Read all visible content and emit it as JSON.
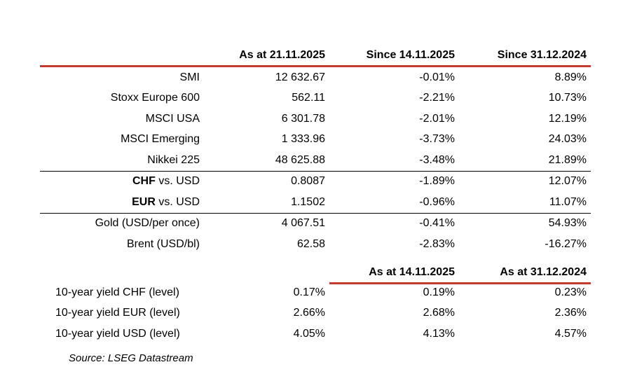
{
  "colors": {
    "accent_red": "#C23B2E",
    "separator_black": "#000000",
    "text": "#000000",
    "background": "#FFFFFF"
  },
  "table1": {
    "headers": [
      "",
      "As at 21.11.2025",
      "Since 14.11.2025",
      "Since 31.12.2024"
    ],
    "rows": [
      {
        "label_bold": "",
        "label": "SMI",
        "v1": "12 632.67",
        "v2": "-0.01%",
        "v3": "8.89%"
      },
      {
        "label_bold": "",
        "label": "Stoxx Europe 600",
        "v1": "562.11",
        "v2": "-2.21%",
        "v3": "10.73%"
      },
      {
        "label_bold": "",
        "label": "MSCI USA",
        "v1": "6 301.78",
        "v2": "-2.01%",
        "v3": "12.19%"
      },
      {
        "label_bold": "",
        "label": "MSCI Emerging",
        "v1": "1 333.96",
        "v2": "-3.73%",
        "v3": "24.03%"
      },
      {
        "label_bold": "",
        "label": "Nikkei 225",
        "v1": "48 625.88",
        "v2": "-3.48%",
        "v3": "21.89%"
      },
      {
        "label_bold": "CHF",
        "label": " vs. USD",
        "v1": "0.8087",
        "v2": "-1.89%",
        "v3": "12.07%"
      },
      {
        "label_bold": "EUR",
        "label": " vs. USD",
        "v1": "1.1502",
        "v2": "-0.96%",
        "v3": "11.07%"
      },
      {
        "label_bold": "",
        "label": "Gold (USD/per once)",
        "v1": "4 067.51",
        "v2": "-0.41%",
        "v3": "54.93%"
      },
      {
        "label_bold": "",
        "label": "Brent (USD/bl)",
        "v1": "62.58",
        "v2": "-2.83%",
        "v3": "-16.27%"
      }
    ]
  },
  "table2": {
    "headers": [
      "",
      "",
      "As at 14.11.2025",
      "As at 31.12.2024"
    ],
    "rows": [
      {
        "label": "10-year yield CHF (level)",
        "v1": "0.17%",
        "v2": "0.19%",
        "v3": "0.23%"
      },
      {
        "label": "10-year yield EUR (level)",
        "v1": "2.66%",
        "v2": "2.68%",
        "v3": "2.36%"
      },
      {
        "label": "10-year yield USD (level)",
        "v1": "4.05%",
        "v2": "4.13%",
        "v3": "4.57%"
      }
    ]
  },
  "source": "Source: LSEG Datastream",
  "chart_data": [
    {
      "type": "table",
      "title": "Market levels and performance",
      "columns": [
        "",
        "As at 21.11.2025",
        "Since 14.11.2025",
        "Since 31.12.2024"
      ],
      "rows": [
        [
          "SMI",
          "12 632.67",
          "-0.01%",
          "8.89%"
        ],
        [
          "Stoxx Europe 600",
          "562.11",
          "-2.21%",
          "10.73%"
        ],
        [
          "MSCI USA",
          "6 301.78",
          "-2.01%",
          "12.19%"
        ],
        [
          "MSCI Emerging",
          "1 333.96",
          "-3.73%",
          "24.03%"
        ],
        [
          "Nikkei 225",
          "48 625.88",
          "-3.48%",
          "21.89%"
        ],
        [
          "CHF vs. USD",
          "0.8087",
          "-1.89%",
          "12.07%"
        ],
        [
          "EUR vs. USD",
          "1.1502",
          "-0.96%",
          "11.07%"
        ],
        [
          "Gold (USD/per once)",
          "4 067.51",
          "-0.41%",
          "54.93%"
        ],
        [
          "Brent (USD/bl)",
          "62.58",
          "-2.83%",
          "-16.27%"
        ]
      ]
    },
    {
      "type": "table",
      "title": "10-year yields",
      "columns": [
        "",
        "As at 21.11.2025",
        "As at 14.11.2025",
        "As at 31.12.2024"
      ],
      "rows": [
        [
          "10-year yield CHF (level)",
          "0.17%",
          "0.19%",
          "0.23%"
        ],
        [
          "10-year yield EUR (level)",
          "2.66%",
          "2.68%",
          "2.36%"
        ],
        [
          "10-year yield USD (level)",
          "4.05%",
          "4.13%",
          "4.57%"
        ]
      ],
      "source": "Source: LSEG Datastream"
    }
  ]
}
